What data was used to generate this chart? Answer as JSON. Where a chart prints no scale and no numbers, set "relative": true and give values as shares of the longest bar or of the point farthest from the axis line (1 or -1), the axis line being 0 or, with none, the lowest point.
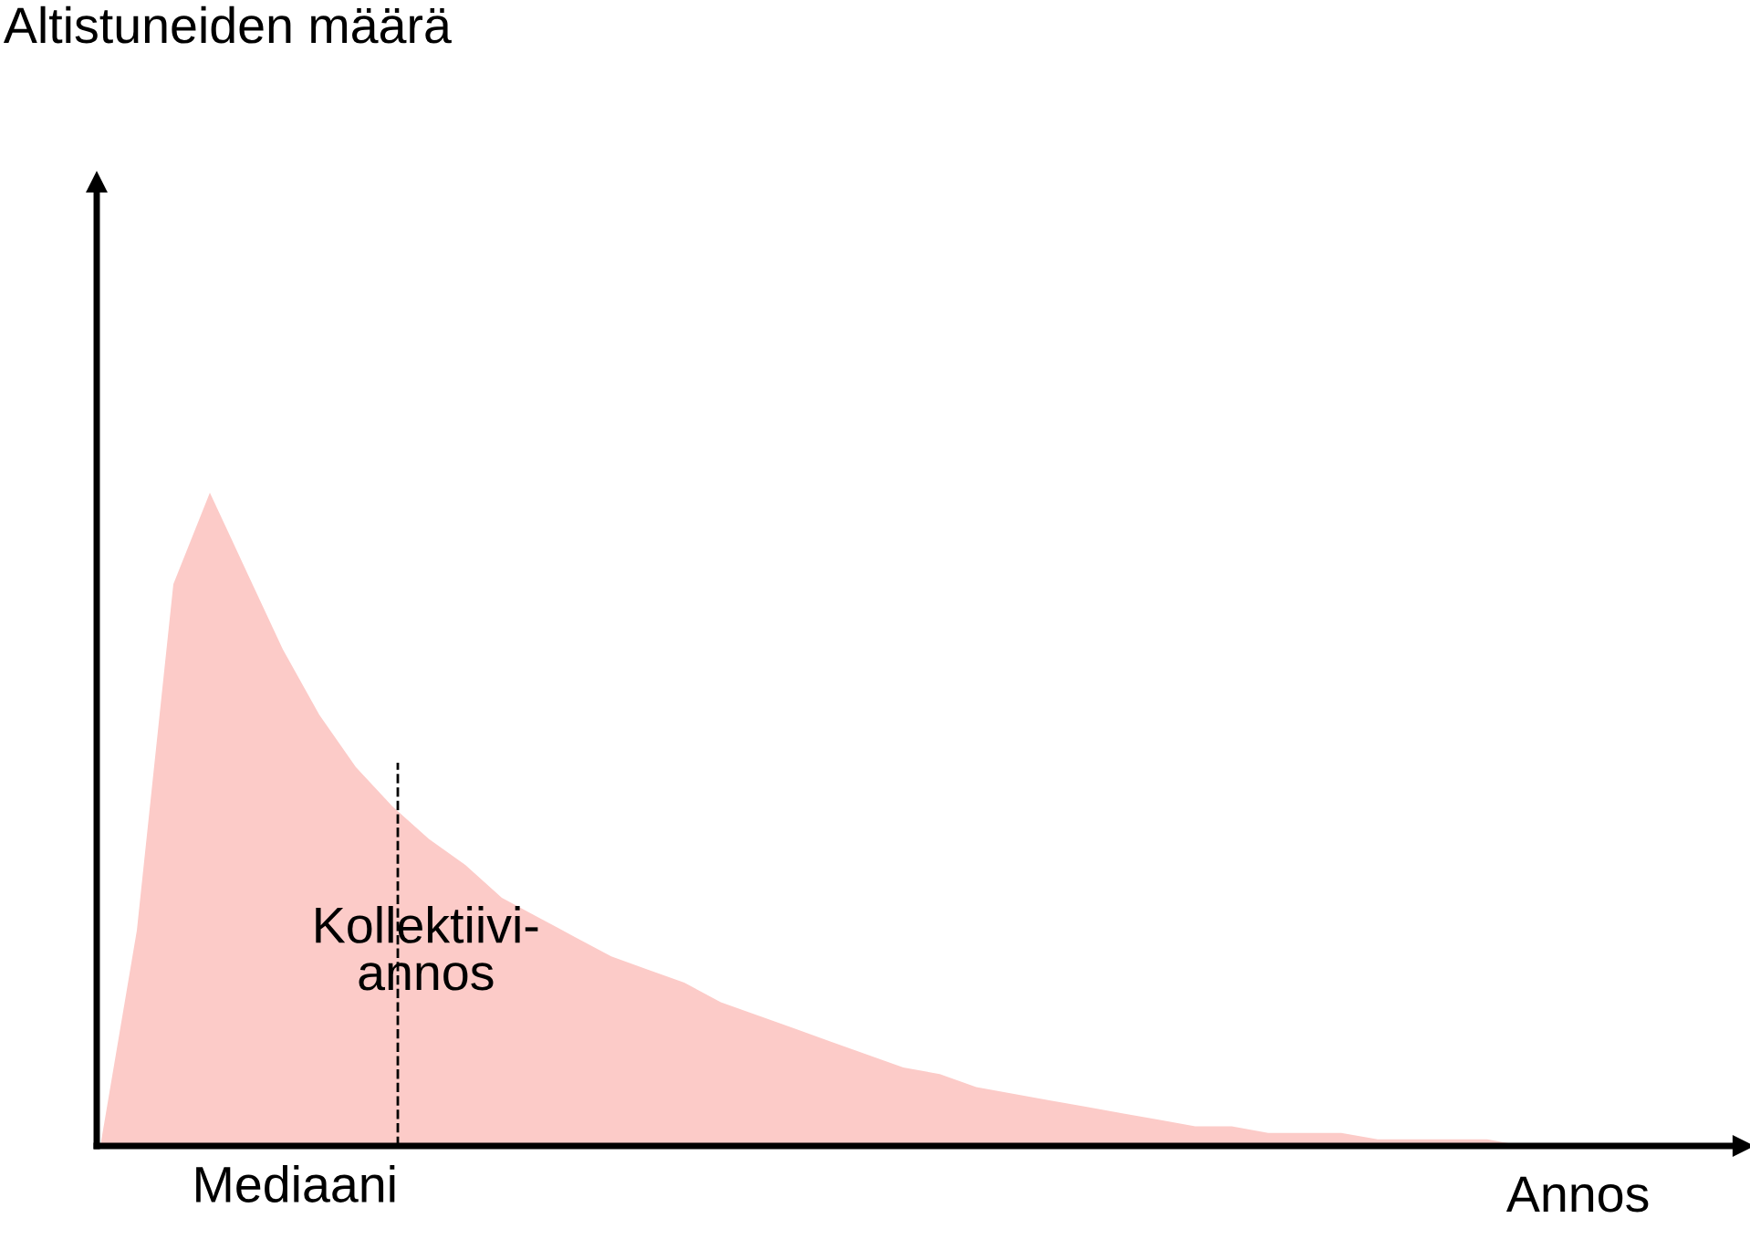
{
  "chart_data": {
    "type": "area",
    "relative": true,
    "xlabel": "Annos",
    "categories": [
      null,
      null,
      null,
      null,
      null,
      null,
      null,
      null,
      null,
      null,
      null,
      null,
      null,
      null,
      null,
      null,
      null,
      null,
      null,
      null,
      null,
      null,
      null,
      null,
      null,
      null,
      null,
      null,
      null,
      null,
      null,
      null,
      null,
      null,
      null,
      null,
      null,
      null,
      null,
      null
    ],
    "values": [
      0,
      0.33,
      0.86,
      1,
      0.88,
      0.76,
      0.66,
      0.58,
      0.52,
      0.47,
      0.43,
      0.38,
      0.35,
      0.32,
      0.29,
      0.27,
      0.25,
      0.22,
      0.2,
      0.18,
      0.16,
      0.14,
      0.12,
      0.11,
      0.09,
      0.08,
      0.07,
      0.06,
      0.05,
      0.04,
      0.03,
      0.03,
      0.02,
      0.02,
      0.02,
      0.01,
      0.01,
      0.01,
      0.01,
      0
    ],
    "color": "#fccbc8",
    "annotations": [
      "Altistuneiden määrä",
      "Kollektiivi-\nannos",
      "Mediaani"
    ],
    "legend": false
  }
}
